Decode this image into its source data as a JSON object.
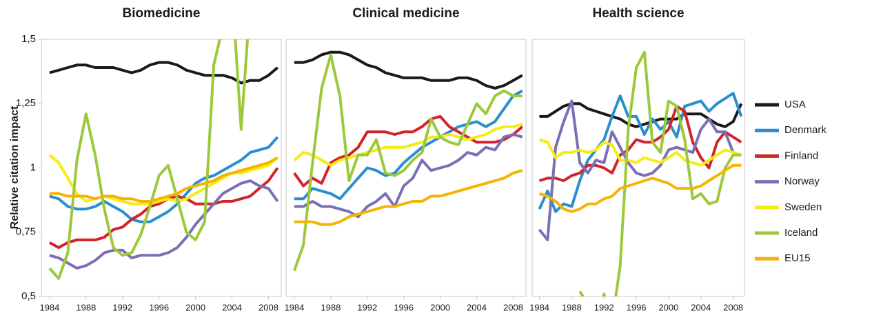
{
  "chart_data": [
    {
      "type": "line",
      "title": "Biomedicine",
      "y_label": "Relative citation impact",
      "x": [
        1984,
        1985,
        1986,
        1987,
        1988,
        1989,
        1990,
        1991,
        1992,
        1993,
        1994,
        1995,
        1996,
        1997,
        1998,
        1999,
        2000,
        2001,
        2002,
        2003,
        2004,
        2005,
        2006,
        2007,
        2008,
        2009
      ],
      "xlim": [
        1983.1,
        2009.4
      ],
      "xticks": [
        1984,
        1988,
        1992,
        1996,
        2000,
        2004,
        2008
      ],
      "ylim": [
        0.5,
        1.5
      ],
      "yticks": [
        {
          "value": 0.5,
          "label": "0,5"
        },
        {
          "value": 0.75,
          "label": "0,75"
        },
        1,
        {
          "value": 1.25,
          "label": "1,25"
        },
        {
          "value": 1.5,
          "label": "1,5"
        }
      ],
      "series": [
        {
          "name": "USA",
          "color": "#1a1a1a",
          "values": [
            1.37,
            1.38,
            1.39,
            1.4,
            1.4,
            1.39,
            1.39,
            1.39,
            1.38,
            1.37,
            1.38,
            1.4,
            1.41,
            1.41,
            1.4,
            1.38,
            1.37,
            1.36,
            1.36,
            1.36,
            1.35,
            1.33,
            1.34,
            1.34,
            1.36,
            1.39
          ]
        },
        {
          "name": "Denmark",
          "color": "#2a8fce",
          "values": [
            0.89,
            0.88,
            0.85,
            0.84,
            0.84,
            0.85,
            0.87,
            0.85,
            0.83,
            0.8,
            0.79,
            0.79,
            0.81,
            0.83,
            0.86,
            0.9,
            0.94,
            0.96,
            0.97,
            0.99,
            1.01,
            1.03,
            1.06,
            1.07,
            1.08,
            1.12
          ]
        },
        {
          "name": "Finland",
          "color": "#d2232a",
          "values": [
            0.71,
            0.69,
            0.71,
            0.72,
            0.72,
            0.72,
            0.73,
            0.76,
            0.77,
            0.8,
            0.82,
            0.85,
            0.86,
            0.88,
            0.89,
            0.88,
            0.86,
            0.86,
            0.86,
            0.87,
            0.87,
            0.88,
            0.89,
            0.92,
            0.95,
            1.0
          ]
        },
        {
          "name": "Norway",
          "color": "#7b6fb5",
          "values": [
            0.66,
            0.65,
            0.63,
            0.61,
            0.62,
            0.64,
            0.67,
            0.68,
            0.68,
            0.65,
            0.66,
            0.66,
            0.66,
            0.67,
            0.69,
            0.73,
            0.78,
            0.82,
            0.86,
            0.9,
            0.92,
            0.94,
            0.95,
            0.93,
            0.92,
            0.87
          ]
        },
        {
          "name": "Sweden",
          "color": "#f6ec14",
          "values": [
            1.05,
            1.02,
            0.96,
            0.9,
            0.87,
            0.88,
            0.89,
            0.88,
            0.87,
            0.86,
            0.86,
            0.86,
            0.87,
            0.88,
            0.87,
            0.88,
            0.9,
            0.92,
            0.94,
            0.96,
            0.98,
            0.98,
            0.99,
            1.0,
            1.01,
            1.04
          ]
        },
        {
          "name": "Iceland",
          "color": "#9cc93b",
          "values": [
            0.61,
            0.57,
            0.67,
            1.03,
            1.21,
            1.05,
            0.84,
            0.69,
            0.66,
            0.67,
            0.74,
            0.85,
            0.97,
            1.01,
            0.88,
            0.75,
            0.72,
            0.79,
            1.4,
            1.55,
            1.7,
            1.15,
            1.65,
            null,
            null,
            null
          ]
        },
        {
          "name": "EU15",
          "color": "#f5b400",
          "values": [
            0.9,
            0.9,
            0.89,
            0.89,
            0.89,
            0.88,
            0.89,
            0.89,
            0.88,
            0.88,
            0.87,
            0.87,
            0.88,
            0.89,
            0.9,
            0.92,
            0.93,
            0.94,
            0.95,
            0.97,
            0.98,
            0.99,
            1.0,
            1.01,
            1.02,
            1.04
          ]
        }
      ]
    },
    {
      "type": "line",
      "title": "Clinical medicine",
      "x": [
        1984,
        1985,
        1986,
        1987,
        1988,
        1989,
        1990,
        1991,
        1992,
        1993,
        1994,
        1995,
        1996,
        1997,
        1998,
        1999,
        2000,
        2001,
        2002,
        2003,
        2004,
        2005,
        2006,
        2007,
        2008,
        2009
      ],
      "xlim": [
        1983.1,
        2009.4
      ],
      "xticks": [
        1984,
        1988,
        1992,
        1996,
        2000,
        2004,
        2008
      ],
      "series": [
        {
          "name": "USA",
          "color": "#1a1a1a",
          "values": [
            1.41,
            1.41,
            1.42,
            1.44,
            1.45,
            1.45,
            1.44,
            1.42,
            1.4,
            1.39,
            1.37,
            1.36,
            1.35,
            1.35,
            1.35,
            1.34,
            1.34,
            1.34,
            1.35,
            1.35,
            1.34,
            1.32,
            1.31,
            1.32,
            1.34,
            1.36
          ]
        },
        {
          "name": "Denmark",
          "color": "#2a8fce",
          "values": [
            0.88,
            0.88,
            0.92,
            0.91,
            0.9,
            0.88,
            0.92,
            0.96,
            1.0,
            0.99,
            0.97,
            0.98,
            1.02,
            1.05,
            1.08,
            1.1,
            1.12,
            1.14,
            1.16,
            1.17,
            1.18,
            1.16,
            1.18,
            1.23,
            1.28,
            1.3
          ]
        },
        {
          "name": "Finland",
          "color": "#d2232a",
          "values": [
            0.98,
            0.93,
            0.96,
            0.94,
            1.02,
            1.04,
            1.05,
            1.08,
            1.14,
            1.14,
            1.14,
            1.13,
            1.14,
            1.14,
            1.16,
            1.19,
            1.2,
            1.16,
            1.14,
            1.12,
            1.1,
            1.1,
            1.1,
            1.11,
            1.13,
            1.16
          ]
        },
        {
          "name": "Norway",
          "color": "#7b6fb5",
          "values": [
            0.85,
            0.85,
            0.87,
            0.85,
            0.85,
            0.84,
            0.83,
            0.81,
            0.85,
            0.87,
            0.9,
            0.85,
            0.93,
            0.96,
            1.03,
            0.99,
            1.0,
            1.01,
            1.03,
            1.06,
            1.05,
            1.08,
            1.07,
            1.12,
            1.13,
            1.12
          ]
        },
        {
          "name": "Sweden",
          "color": "#f6ec14",
          "values": [
            1.03,
            1.06,
            1.05,
            1.03,
            1.01,
            1.03,
            1.04,
            1.05,
            1.06,
            1.07,
            1.08,
            1.08,
            1.08,
            1.09,
            1.1,
            1.12,
            1.12,
            1.13,
            1.12,
            1.11,
            1.12,
            1.13,
            1.15,
            1.16,
            1.16,
            1.17
          ]
        },
        {
          "name": "Iceland",
          "color": "#9cc93b",
          "values": [
            0.6,
            0.7,
            1.02,
            1.31,
            1.44,
            1.28,
            0.95,
            1.05,
            1.05,
            1.11,
            0.98,
            0.97,
            0.99,
            1.03,
            1.06,
            1.19,
            1.12,
            1.1,
            1.09,
            1.17,
            1.25,
            1.21,
            1.28,
            1.3,
            1.28,
            1.28
          ]
        },
        {
          "name": "EU15",
          "color": "#f5b400",
          "values": [
            0.79,
            0.79,
            0.79,
            0.78,
            0.78,
            0.79,
            0.81,
            0.82,
            0.83,
            0.84,
            0.85,
            0.85,
            0.86,
            0.87,
            0.87,
            0.89,
            0.89,
            0.9,
            0.91,
            0.92,
            0.93,
            0.94,
            0.95,
            0.96,
            0.98,
            0.99
          ]
        }
      ]
    },
    {
      "type": "line",
      "title": "Health science",
      "x": [
        1984,
        1985,
        1986,
        1987,
        1988,
        1989,
        1990,
        1991,
        1992,
        1993,
        1994,
        1995,
        1996,
        1997,
        1998,
        1999,
        2000,
        2001,
        2002,
        2003,
        2004,
        2005,
        2006,
        2007,
        2008,
        2009
      ],
      "xlim": [
        1983.1,
        2009.4
      ],
      "xticks": [
        1984,
        1988,
        1992,
        1996,
        2000,
        2004,
        2008
      ],
      "series": [
        {
          "name": "USA",
          "color": "#1a1a1a",
          "values": [
            1.2,
            1.2,
            1.22,
            1.24,
            1.25,
            1.25,
            1.23,
            1.22,
            1.21,
            1.2,
            1.19,
            1.17,
            1.16,
            1.17,
            1.18,
            1.19,
            1.19,
            1.19,
            1.21,
            1.21,
            1.21,
            1.19,
            1.17,
            1.16,
            1.18,
            1.25
          ]
        },
        {
          "name": "Denmark",
          "color": "#2a8fce",
          "values": [
            0.84,
            0.91,
            0.83,
            0.86,
            0.85,
            0.95,
            1.03,
            1.07,
            1.11,
            1.2,
            1.28,
            1.2,
            1.2,
            1.13,
            1.19,
            1.15,
            1.18,
            1.12,
            1.24,
            1.25,
            1.26,
            1.22,
            1.25,
            1.27,
            1.29,
            1.2
          ]
        },
        {
          "name": "Finland",
          "color": "#d2232a",
          "values": [
            0.95,
            0.96,
            0.96,
            0.95,
            0.97,
            0.98,
            1.01,
            1.01,
            1.0,
            0.98,
            1.05,
            1.07,
            1.11,
            1.1,
            1.1,
            1.12,
            1.15,
            1.24,
            1.22,
            1.1,
            1.04,
            1.0,
            1.1,
            1.14,
            1.12,
            1.1
          ]
        },
        {
          "name": "Norway",
          "color": "#7b6fb5",
          "values": [
            0.76,
            0.72,
            1.08,
            1.18,
            1.26,
            1.02,
            0.98,
            1.03,
            1.02,
            1.14,
            1.08,
            1.02,
            0.98,
            0.97,
            0.98,
            1.01,
            1.07,
            1.08,
            1.07,
            1.06,
            1.15,
            1.19,
            1.14,
            1.14,
            1.06,
            1.05
          ]
        },
        {
          "name": "Sweden",
          "color": "#f6ec14",
          "values": [
            1.11,
            1.1,
            1.04,
            1.06,
            1.06,
            1.07,
            1.06,
            1.07,
            1.1,
            1.09,
            1.03,
            1.03,
            1.02,
            1.04,
            1.03,
            1.02,
            1.04,
            1.06,
            1.03,
            1.02,
            1.01,
            1.03,
            1.05,
            1.07,
            1.06,
            1.05
          ]
        },
        {
          "name": "Iceland",
          "color": "#9cc93b",
          "values": [
            null,
            null,
            null,
            null,
            null,
            0.52,
            0.47,
            0.4,
            0.51,
            0.4,
            0.62,
            1.15,
            1.39,
            1.45,
            1.1,
            1.06,
            1.26,
            1.24,
            1.11,
            0.88,
            0.9,
            0.86,
            0.87,
            1.0,
            1.05,
            1.05
          ]
        },
        {
          "name": "EU15",
          "color": "#f5b400",
          "values": [
            0.9,
            0.89,
            0.87,
            0.84,
            0.83,
            0.84,
            0.86,
            0.86,
            0.88,
            0.89,
            0.92,
            0.93,
            0.94,
            0.95,
            0.96,
            0.95,
            0.94,
            0.92,
            0.92,
            0.92,
            0.93,
            0.95,
            0.97,
            0.99,
            1.01,
            1.01
          ]
        }
      ]
    }
  ]
}
